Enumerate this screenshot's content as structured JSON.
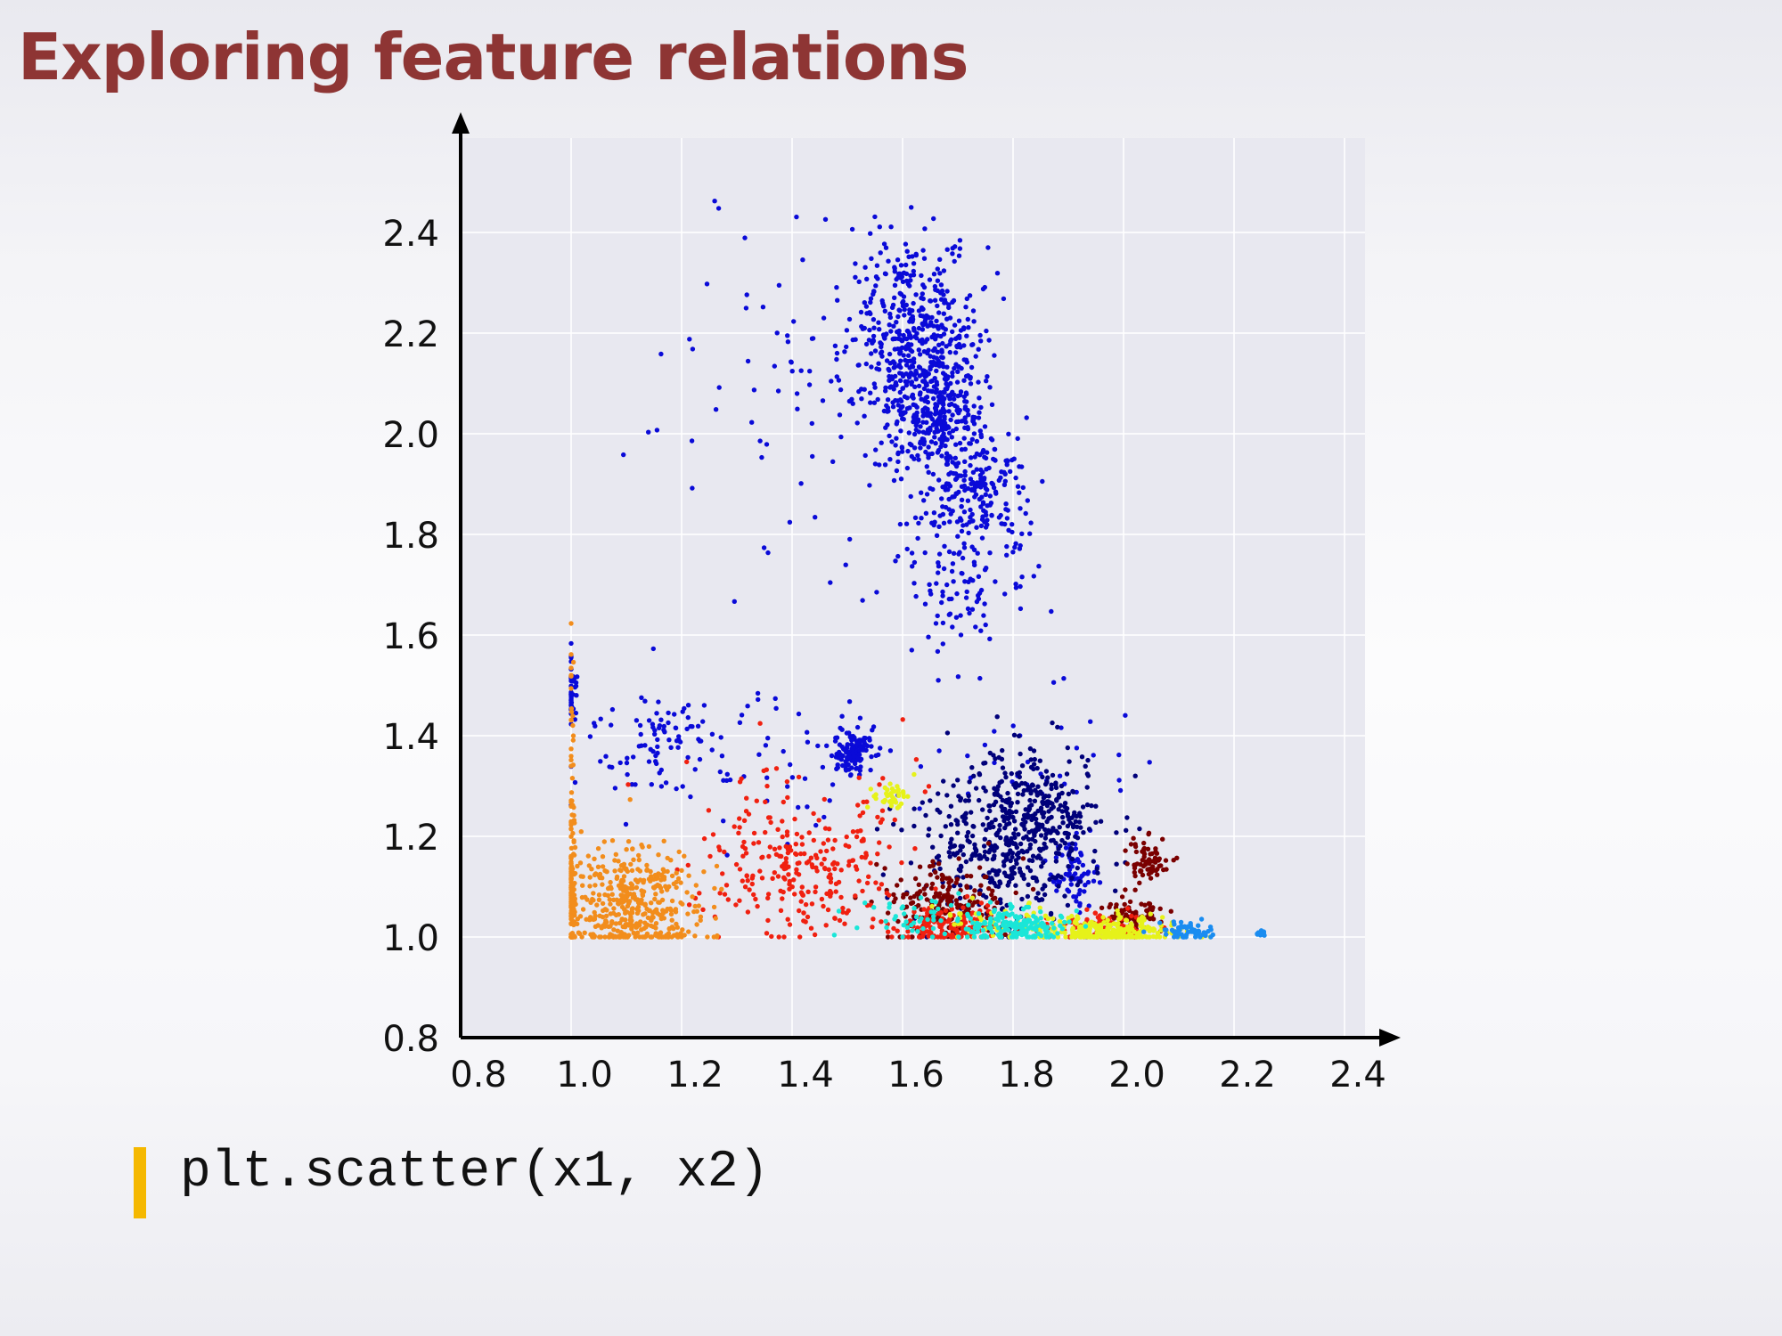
{
  "slide": {
    "title": "Exploring feature relations",
    "code": "plt.scatter(x1, x2)",
    "accent_bar_color": "#f5b800"
  },
  "chart_data": {
    "type": "scatter",
    "title": "",
    "xlabel": "",
    "ylabel": "",
    "xlim": [
      0.8,
      2.4
    ],
    "ylim": [
      0.8,
      2.6
    ],
    "xticks": [
      0.8,
      1.0,
      1.2,
      1.4,
      1.6,
      1.8,
      2.0,
      2.2,
      2.4
    ],
    "yticks": [
      0.8,
      1.0,
      1.2,
      1.4,
      1.6,
      1.8,
      2.0,
      2.2,
      2.4
    ],
    "x_tick_labels": [
      "0.8",
      "1.0",
      "1.2",
      "1.4",
      "1.6",
      "1.8",
      "2.0",
      "2.2",
      "2.4"
    ],
    "y_tick_labels": [
      "0.8",
      "1.0",
      "1.2",
      "1.4",
      "1.6",
      "1.8",
      "2.0",
      "2.2",
      "2.4"
    ],
    "grid": true,
    "legend": "none",
    "plot_background": "#e8e8f0",
    "axis_color": "#000000",
    "series": [
      {
        "color": "#0a0ad8",
        "clusters": [
          {
            "cx": 1.62,
            "cy": 2.18,
            "sx": 0.06,
            "sy": 0.11,
            "n": 520
          },
          {
            "cx": 1.66,
            "cy": 2.05,
            "sx": 0.04,
            "sy": 0.05,
            "n": 220
          },
          {
            "cx": 1.73,
            "cy": 1.9,
            "sx": 0.05,
            "sy": 0.06,
            "n": 200
          },
          {
            "cx": 1.7,
            "cy": 1.72,
            "sx": 0.06,
            "sy": 0.1,
            "n": 130
          },
          {
            "cx": 1.4,
            "cy": 2.05,
            "sx": 0.13,
            "sy": 0.25,
            "n": 70
          },
          {
            "cx": 1.15,
            "cy": 1.4,
            "sx": 0.07,
            "sy": 0.06,
            "n": 90
          },
          {
            "cx": 1.35,
            "cy": 1.35,
            "sx": 0.12,
            "sy": 0.09,
            "n": 50
          },
          {
            "cx": 1.51,
            "cy": 1.37,
            "sx": 0.018,
            "sy": 0.022,
            "n": 130
          },
          {
            "cx": 1.0,
            "cy": 1.48,
            "sx": 0.005,
            "sy": 0.04,
            "n": 45
          },
          {
            "cx": 1.91,
            "cy": 1.12,
            "sx": 0.02,
            "sy": 0.04,
            "n": 70
          },
          {
            "cx": 1.85,
            "cy": 1.35,
            "sx": 0.1,
            "sy": 0.06,
            "n": 30
          }
        ]
      },
      {
        "color": "#00007a",
        "clusters": [
          {
            "cx": 1.78,
            "cy": 1.18,
            "sx": 0.08,
            "sy": 0.08,
            "n": 420
          },
          {
            "cx": 1.85,
            "cy": 1.26,
            "sx": 0.05,
            "sy": 0.06,
            "n": 160
          }
        ]
      },
      {
        "color": "#7a0000",
        "clusters": [
          {
            "cx": 1.68,
            "cy": 1.07,
            "sx": 0.06,
            "sy": 0.04,
            "n": 200
          },
          {
            "cx": 2.04,
            "cy": 1.15,
            "sx": 0.018,
            "sy": 0.022,
            "n": 70
          },
          {
            "cx": 2.02,
            "cy": 1.04,
            "sx": 0.03,
            "sy": 0.02,
            "n": 80
          }
        ]
      },
      {
        "color": "#f02010",
        "clusters": [
          {
            "cx": 1.42,
            "cy": 1.14,
            "sx": 0.09,
            "sy": 0.06,
            "n": 240
          },
          {
            "cx": 1.68,
            "cy": 1.02,
            "sx": 0.05,
            "sy": 0.02,
            "n": 150
          },
          {
            "cx": 1.95,
            "cy": 1.02,
            "sx": 0.05,
            "sy": 0.015,
            "n": 80
          },
          {
            "cx": 1.45,
            "cy": 1.3,
            "sx": 0.12,
            "sy": 0.06,
            "n": 35
          }
        ]
      },
      {
        "color": "#f28d1c",
        "clusters": [
          {
            "cx": 1.11,
            "cy": 1.07,
            "sx": 0.06,
            "sy": 0.05,
            "n": 380
          },
          {
            "cx": 1.0,
            "cy": 1.1,
            "sx": 0.004,
            "sy": 0.09,
            "n": 110
          },
          {
            "cx": 1.0,
            "cy": 1.45,
            "sx": 0.004,
            "sy": 0.12,
            "n": 25
          },
          {
            "cx": 1.13,
            "cy": 1.0,
            "sx": 0.06,
            "sy": 0.004,
            "n": 60
          }
        ]
      },
      {
        "color": "#e6f21a",
        "clusters": [
          {
            "cx": 1.98,
            "cy": 1.01,
            "sx": 0.06,
            "sy": 0.015,
            "n": 260
          },
          {
            "cx": 1.58,
            "cy": 1.28,
            "sx": 0.02,
            "sy": 0.015,
            "n": 40
          },
          {
            "cx": 1.78,
            "cy": 1.03,
            "sx": 0.06,
            "sy": 0.02,
            "n": 60
          }
        ]
      },
      {
        "color": "#1ae6d8",
        "clusters": [
          {
            "cx": 1.8,
            "cy": 1.02,
            "sx": 0.05,
            "sy": 0.018,
            "n": 180
          },
          {
            "cx": 1.6,
            "cy": 1.04,
            "sx": 0.05,
            "sy": 0.02,
            "n": 40
          }
        ]
      },
      {
        "color": "#1a8cf0",
        "clusters": [
          {
            "cx": 2.12,
            "cy": 1.01,
            "sx": 0.03,
            "sy": 0.01,
            "n": 60
          },
          {
            "cx": 2.25,
            "cy": 1.006,
            "sx": 0.004,
            "sy": 0.003,
            "n": 12
          }
        ]
      }
    ]
  }
}
